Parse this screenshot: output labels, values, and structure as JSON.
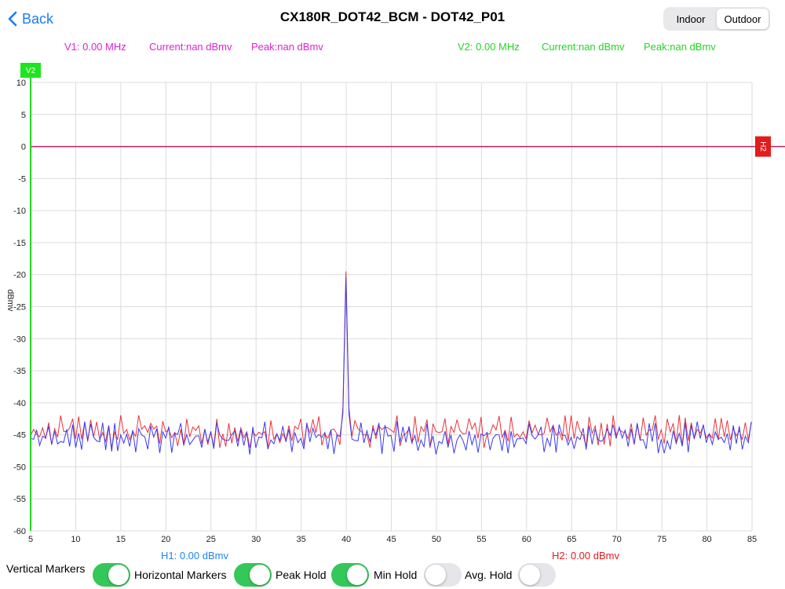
{
  "nav": {
    "back_label": "Back",
    "title": "CX180R_DOT42_BCM - DOT42_P01"
  },
  "segment": {
    "options": [
      "Indoor",
      "Outdoor"
    ],
    "selected": "Outdoor"
  },
  "readouts": {
    "v1": {
      "freq": "V1: 0.00 MHz",
      "current": "Current:nan dBmv",
      "peak": "Peak:nan dBmv"
    },
    "v2": {
      "freq": "V2: 0.00 MHz",
      "current": "Current:nan dBmv",
      "peak": "Peak:nan dBmv"
    },
    "h1": "H1: 0.00 dBmv",
    "h2": "H2: 0.00 dBmv"
  },
  "markers": {
    "v2_tag": "V2",
    "h2_tag": "H2"
  },
  "colors": {
    "magenta": "#e020d8",
    "green": "#22d622",
    "blue": "#1f84f5",
    "red": "#e31b1b",
    "trace_red": "#e8343a",
    "trace_blue": "#3a3af0",
    "toggle_on": "#34c759"
  },
  "controls": [
    {
      "label": "Vertical Markers",
      "on": true
    },
    {
      "label": "Horizontal Markers",
      "on": true
    },
    {
      "label": "Peak Hold",
      "on": true
    },
    {
      "label": "Min Hold",
      "on": false
    },
    {
      "label": "Avg. Hold",
      "on": false
    }
  ],
  "chart_data": {
    "type": "line",
    "xlabel": "",
    "ylabel": "dBmv",
    "xlim": [
      5,
      85
    ],
    "ylim": [
      -60,
      10
    ],
    "x_ticks": [
      "5",
      "10",
      "15",
      "20",
      "25",
      "30",
      "35",
      "40",
      "45",
      "50",
      "55",
      "60",
      "65",
      "70",
      "75",
      "80",
      "85"
    ],
    "y_ticks": [
      "10",
      "5",
      "0",
      "-5",
      "-10",
      "-15",
      "-20",
      "-25",
      "-30",
      "-35",
      "-40",
      "-45",
      "-50",
      "-55",
      "-60"
    ],
    "grid": true,
    "h_marker_value": 0,
    "v_marker_value": 5,
    "series": [
      {
        "color": "#e8343a",
        "noise_floor": -44.5,
        "peak": {
          "x": 40,
          "y": -19.5
        }
      },
      {
        "color": "#3a3af0",
        "noise_floor": -45.5,
        "peak": {
          "x": 40,
          "y": -20.5
        }
      }
    ]
  }
}
